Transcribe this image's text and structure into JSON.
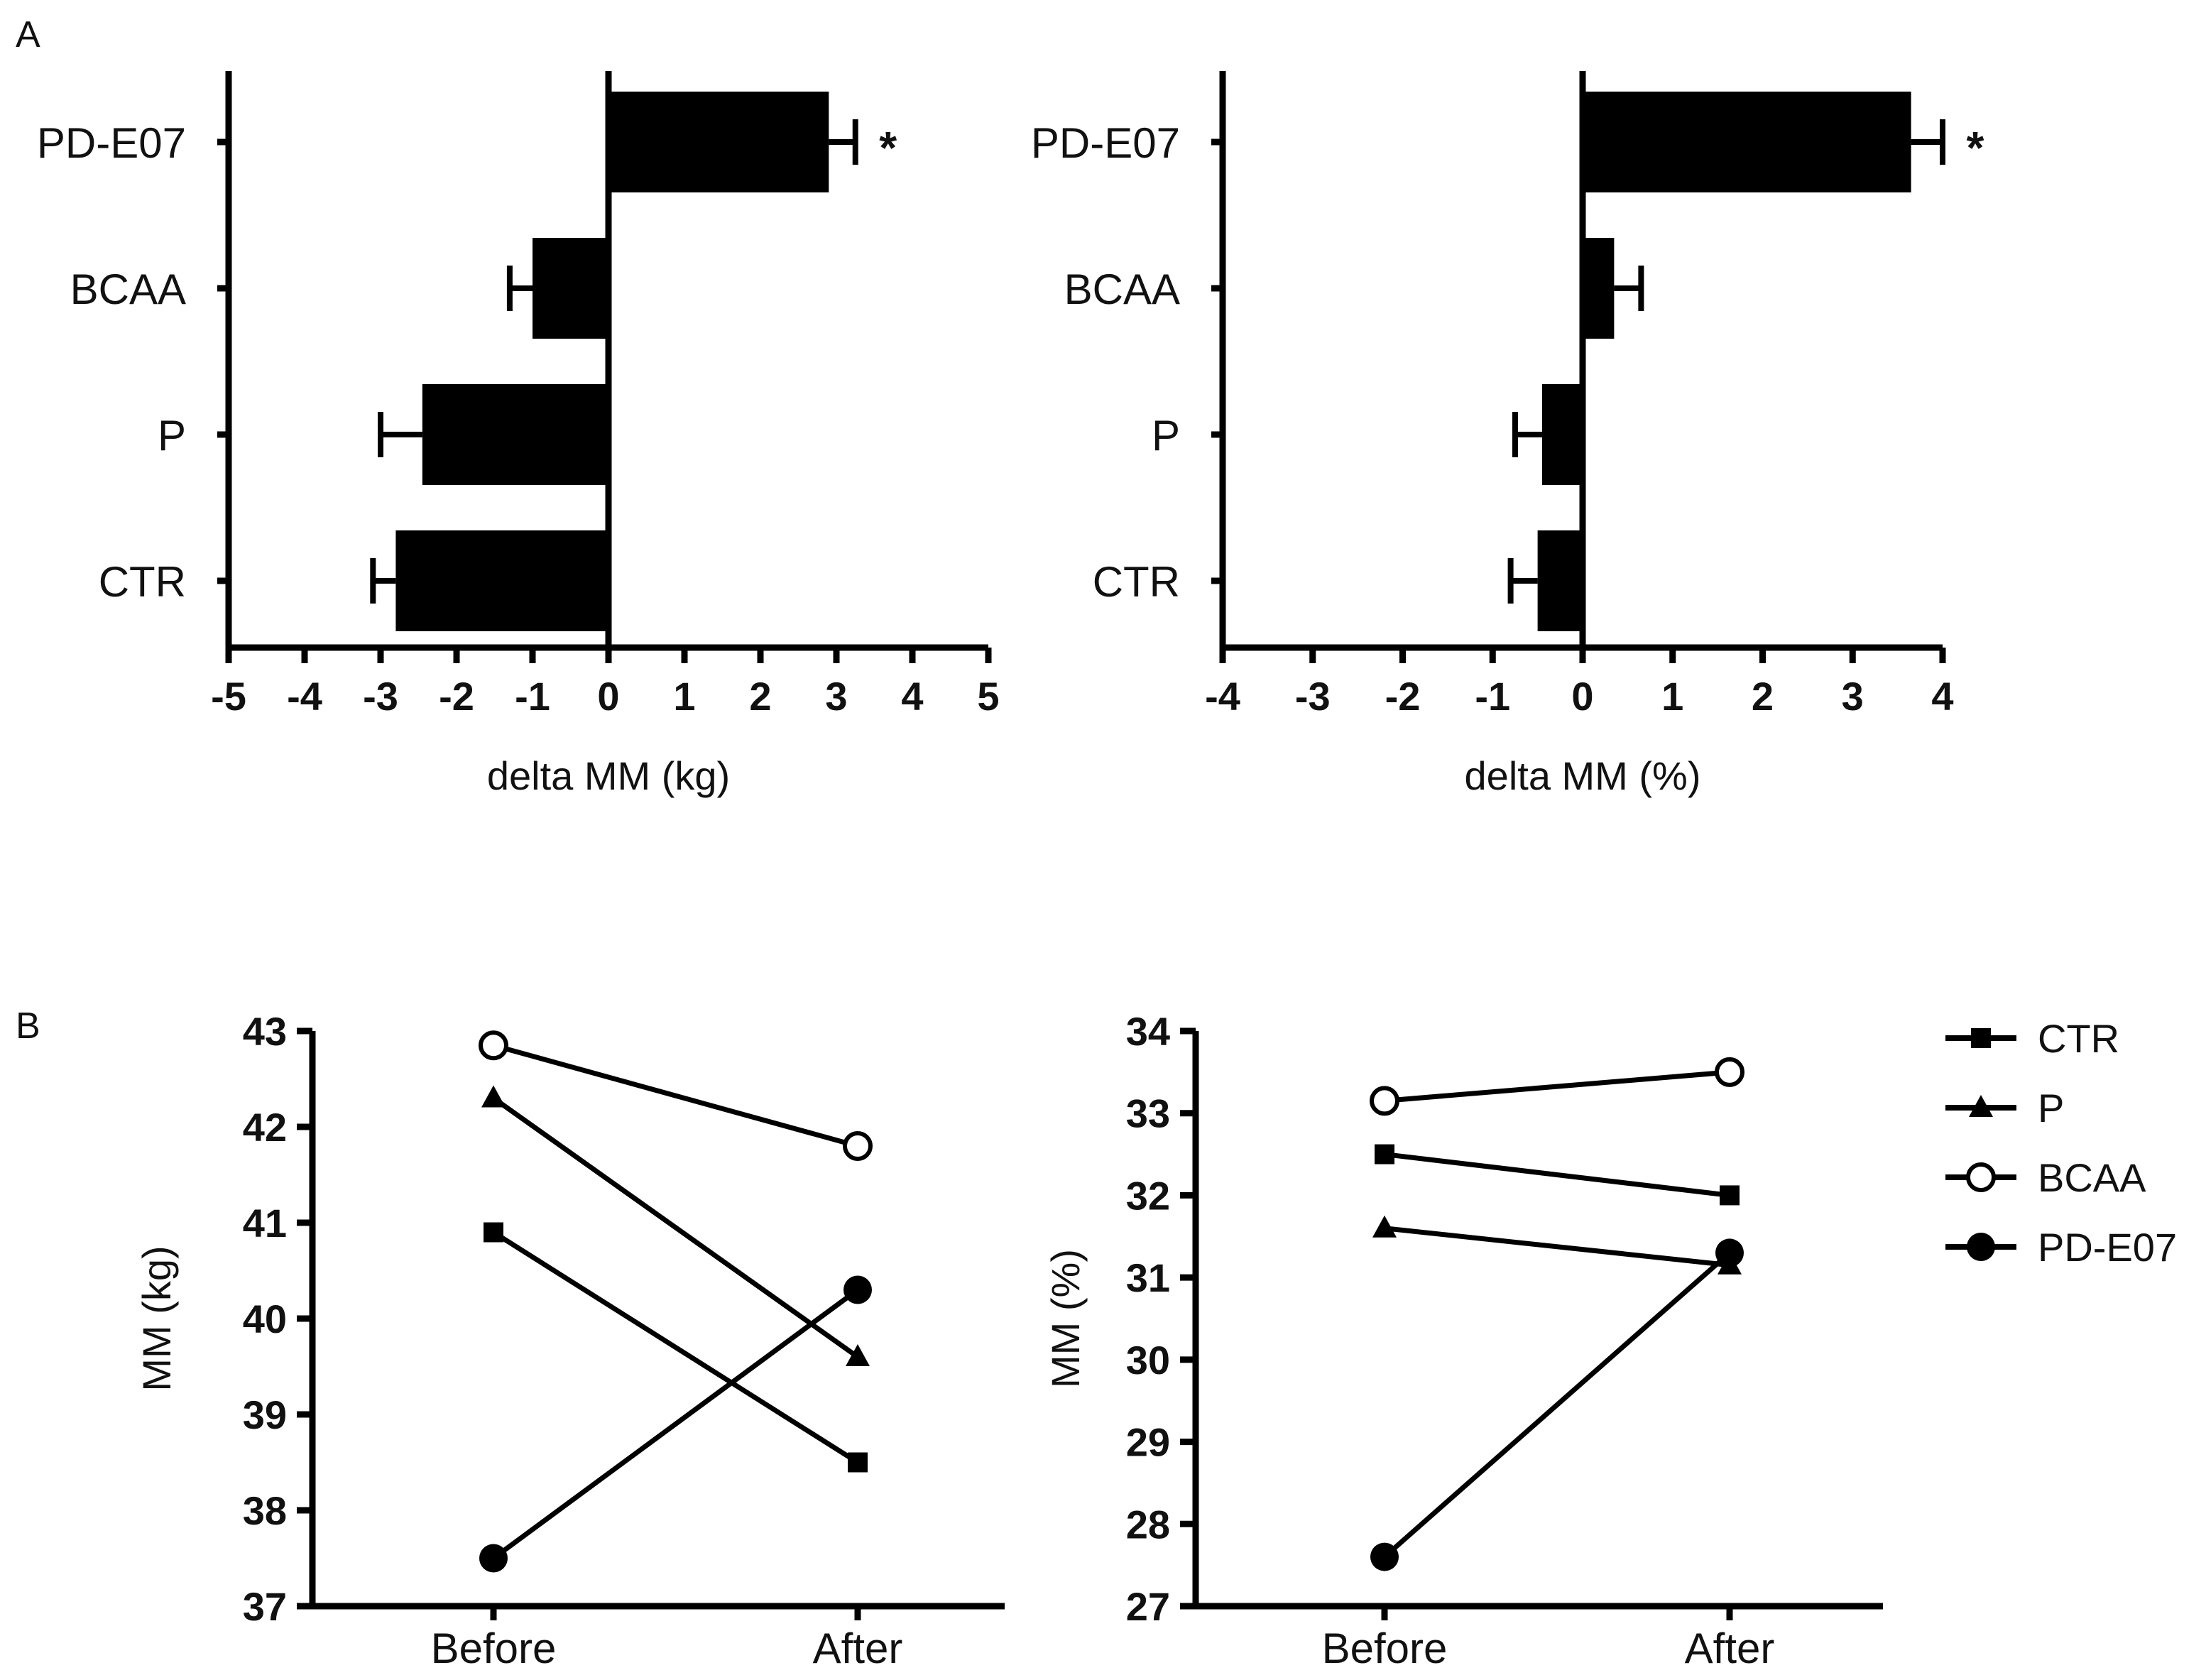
{
  "panels": {
    "A": "A",
    "B": "B"
  },
  "chart_data": [
    {
      "type": "bar",
      "orientation": "horizontal",
      "categories": [
        "CTR",
        "P",
        "BCAA",
        "PD-E07"
      ],
      "values": [
        -2.8,
        -2.45,
        -1.0,
        2.9
      ],
      "errors": [
        0.3,
        0.55,
        0.3,
        0.35
      ],
      "significance": [
        "",
        "",
        "",
        "*"
      ],
      "title": "",
      "xlabel": "delta MM (kg)",
      "ylabel": "",
      "xlim": [
        -5,
        5
      ],
      "xticks": [
        -5,
        -4,
        -3,
        -2,
        -1,
        0,
        1,
        2,
        3,
        4,
        5
      ]
    },
    {
      "type": "bar",
      "orientation": "horizontal",
      "categories": [
        "CTR",
        "P",
        "BCAA",
        "PD-E07"
      ],
      "values": [
        -0.5,
        -0.45,
        0.35,
        3.65
      ],
      "errors": [
        0.3,
        0.3,
        0.3,
        0.35
      ],
      "significance": [
        "",
        "",
        "",
        "*"
      ],
      "title": "",
      "xlabel": "delta MM (%)",
      "ylabel": "",
      "xlim": [
        -4,
        4
      ],
      "xticks": [
        -4,
        -3,
        -2,
        -1,
        0,
        1,
        2,
        3,
        4
      ]
    },
    {
      "type": "line",
      "categories": [
        "Before",
        "After"
      ],
      "series": [
        {
          "name": "CTR",
          "marker": "square",
          "values": [
            40.9,
            38.5
          ]
        },
        {
          "name": "P",
          "marker": "triangle",
          "values": [
            42.3,
            39.6
          ]
        },
        {
          "name": "BCAA",
          "marker": "open-circle",
          "values": [
            42.85,
            41.8
          ]
        },
        {
          "name": "PD-E07",
          "marker": "filled-circle",
          "values": [
            37.5,
            40.3
          ]
        }
      ],
      "title": "",
      "xlabel": "",
      "ylabel": "MM (kg)",
      "ylim": [
        37,
        43
      ],
      "yticks": [
        37,
        38,
        39,
        40,
        41,
        42,
        43
      ]
    },
    {
      "type": "line",
      "categories": [
        "Before",
        "After"
      ],
      "series": [
        {
          "name": "CTR",
          "marker": "square",
          "values": [
            32.5,
            32.0
          ]
        },
        {
          "name": "P",
          "marker": "triangle",
          "values": [
            31.6,
            31.15
          ]
        },
        {
          "name": "BCAA",
          "marker": "open-circle",
          "values": [
            33.15,
            33.5
          ]
        },
        {
          "name": "PD-E07",
          "marker": "filled-circle",
          "values": [
            27.6,
            31.3
          ]
        }
      ],
      "title": "",
      "xlabel": "",
      "ylabel": "MM (%)",
      "ylim": [
        27,
        34
      ],
      "yticks": [
        27,
        28,
        29,
        30,
        31,
        32,
        33,
        34
      ]
    }
  ],
  "legend": [
    {
      "label": "CTR",
      "marker": "square"
    },
    {
      "label": "P",
      "marker": "triangle"
    },
    {
      "label": "BCAA",
      "marker": "open-circle"
    },
    {
      "label": "PD-E07",
      "marker": "filled-circle"
    }
  ]
}
